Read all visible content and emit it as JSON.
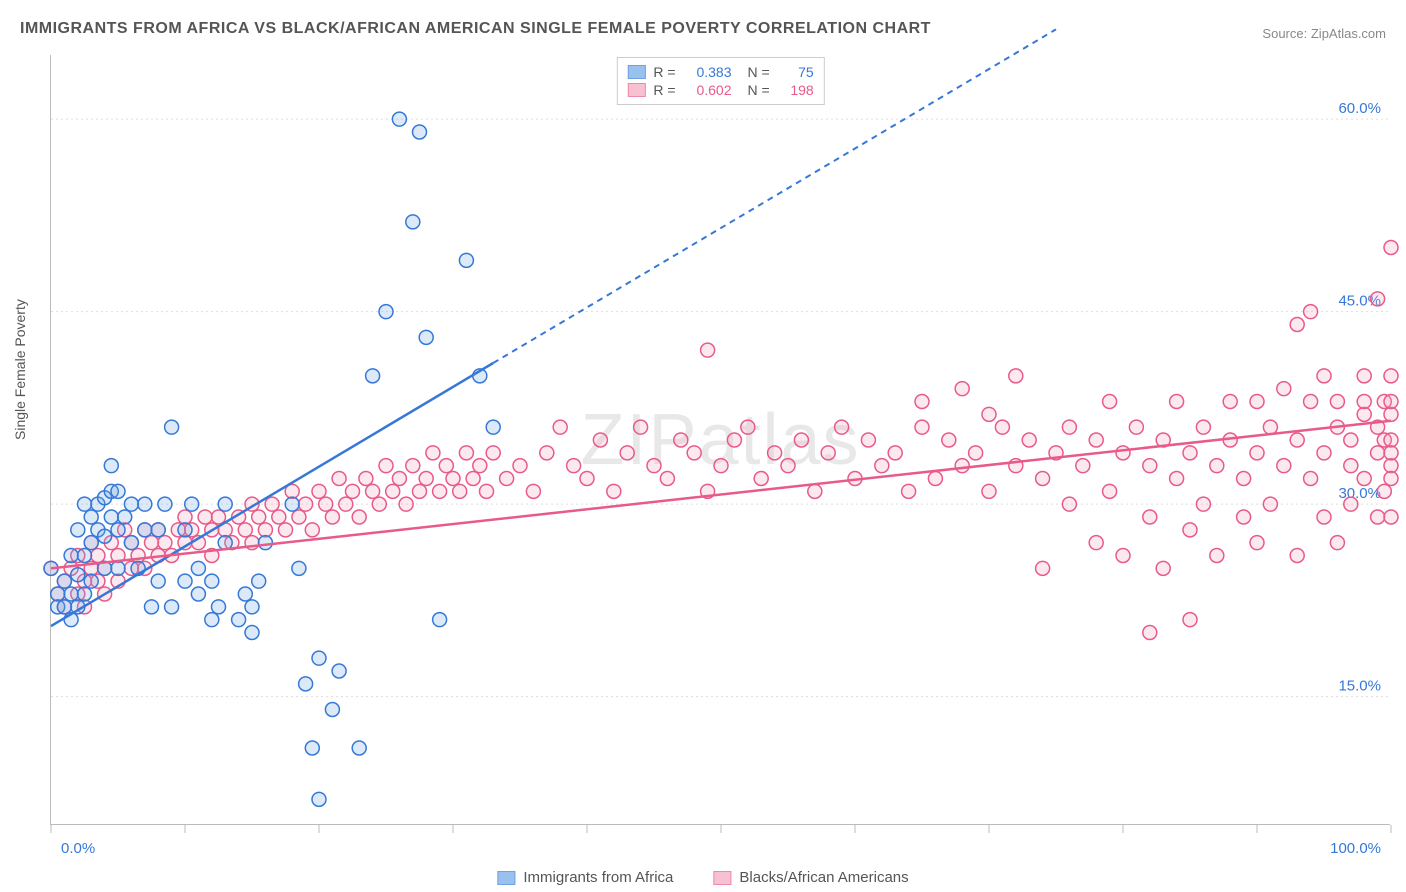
{
  "chart": {
    "title": "IMMIGRANTS FROM AFRICA VS BLACK/AFRICAN AMERICAN SINGLE FEMALE POVERTY CORRELATION CHART",
    "source_label": "Source:",
    "source_name": "ZipAtlas.com",
    "type": "scatter",
    "watermark": "ZIPatlas",
    "y_axis_label": "Single Female Poverty",
    "x_range": [
      0,
      100
    ],
    "y_range": [
      5,
      65
    ],
    "x_ticks": [
      {
        "value": 0.0,
        "label": "0.0%"
      },
      {
        "value": 100.0,
        "label": "100.0%"
      }
    ],
    "x_minor_ticks": [
      10,
      20,
      30,
      40,
      50,
      60,
      70,
      80,
      90
    ],
    "y_ticks": [
      {
        "value": 15.0,
        "label": "15.0%"
      },
      {
        "value": 30.0,
        "label": "30.0%"
      },
      {
        "value": 45.0,
        "label": "45.0%"
      },
      {
        "value": 60.0,
        "label": "60.0%"
      }
    ],
    "background_color": "#ffffff",
    "grid_color": "#dddddd",
    "axis_color": "#bbbbbb",
    "tick_label_color_x": "#3678d8",
    "tick_label_color_y": "#3678d8",
    "tick_label_color_y_first": "#e85a8a",
    "marker_radius": 7,
    "marker_stroke_width": 1.5,
    "marker_fill_opacity": 0.25,
    "series": [
      {
        "name": "Immigrants from Africa",
        "legend_label": "Immigrants from Africa",
        "color": "#6ea8e8",
        "stroke": "#3678d8",
        "R": "0.383",
        "N": "75",
        "trend": {
          "x1": 0,
          "y1": 20.5,
          "x2": 33,
          "y2": 41,
          "dash_x2": 75,
          "dash_y2": 67
        },
        "points": [
          [
            0,
            25
          ],
          [
            0.5,
            23
          ],
          [
            0.5,
            22
          ],
          [
            1,
            24
          ],
          [
            1,
            22
          ],
          [
            1.5,
            23
          ],
          [
            1.5,
            21
          ],
          [
            1.5,
            26
          ],
          [
            2,
            24.5
          ],
          [
            2,
            28
          ],
          [
            2,
            22
          ],
          [
            2.5,
            30
          ],
          [
            2.5,
            26
          ],
          [
            2.5,
            23
          ],
          [
            3,
            27
          ],
          [
            3,
            29
          ],
          [
            3,
            24
          ],
          [
            3.5,
            30
          ],
          [
            3.5,
            28
          ],
          [
            4,
            27.5
          ],
          [
            4,
            30.5
          ],
          [
            4,
            25
          ],
          [
            4.5,
            31
          ],
          [
            4.5,
            29
          ],
          [
            4.5,
            33
          ],
          [
            5,
            28
          ],
          [
            5,
            31
          ],
          [
            5,
            25
          ],
          [
            5.5,
            29
          ],
          [
            6,
            30
          ],
          [
            6,
            27
          ],
          [
            6.5,
            25
          ],
          [
            7,
            30
          ],
          [
            7,
            28
          ],
          [
            7.5,
            22
          ],
          [
            8,
            24
          ],
          [
            8,
            28
          ],
          [
            8.5,
            30
          ],
          [
            9,
            22
          ],
          [
            9,
            36
          ],
          [
            10,
            24
          ],
          [
            10,
            28
          ],
          [
            10.5,
            30
          ],
          [
            11,
            23
          ],
          [
            11,
            25
          ],
          [
            12,
            21
          ],
          [
            12,
            24
          ],
          [
            12.5,
            22
          ],
          [
            13,
            27
          ],
          [
            13,
            30
          ],
          [
            14,
            21
          ],
          [
            14.5,
            23
          ],
          [
            15,
            20
          ],
          [
            15,
            22
          ],
          [
            15.5,
            24
          ],
          [
            16,
            27
          ],
          [
            18,
            30
          ],
          [
            18.5,
            25
          ],
          [
            19,
            16
          ],
          [
            19.5,
            11
          ],
          [
            20,
            7
          ],
          [
            20,
            18
          ],
          [
            21,
            14
          ],
          [
            21.5,
            17
          ],
          [
            23,
            11
          ],
          [
            24,
            40
          ],
          [
            25,
            45
          ],
          [
            26,
            60
          ],
          [
            27,
            52
          ],
          [
            27.5,
            59
          ],
          [
            28,
            43
          ],
          [
            29,
            21
          ],
          [
            31,
            49
          ],
          [
            32,
            40
          ],
          [
            33,
            36
          ]
        ]
      },
      {
        "name": "Blacks/African Americans",
        "legend_label": "Blacks/African Americans",
        "color": "#f4a8c0",
        "stroke": "#e85a8a",
        "R": "0.602",
        "N": "198",
        "trend": {
          "x1": 0,
          "y1": 25,
          "x2": 100,
          "y2": 36.5
        },
        "points": [
          [
            0,
            25
          ],
          [
            0.5,
            23
          ],
          [
            1,
            22
          ],
          [
            1,
            24
          ],
          [
            1.5,
            25
          ],
          [
            2,
            23
          ],
          [
            2,
            26
          ],
          [
            2.5,
            24
          ],
          [
            2.5,
            22
          ],
          [
            3,
            25
          ],
          [
            3,
            27
          ],
          [
            3.5,
            26
          ],
          [
            3.5,
            24
          ],
          [
            4,
            25
          ],
          [
            4,
            23
          ],
          [
            4.5,
            27
          ],
          [
            5,
            26
          ],
          [
            5,
            24
          ],
          [
            5.5,
            28
          ],
          [
            6,
            25
          ],
          [
            6,
            27
          ],
          [
            6.5,
            26
          ],
          [
            7,
            28
          ],
          [
            7,
            25
          ],
          [
            7.5,
            27
          ],
          [
            8,
            26
          ],
          [
            8,
            28
          ],
          [
            8.5,
            27
          ],
          [
            9,
            26
          ],
          [
            9.5,
            28
          ],
          [
            10,
            27
          ],
          [
            10,
            29
          ],
          [
            10.5,
            28
          ],
          [
            11,
            27
          ],
          [
            11.5,
            29
          ],
          [
            12,
            28
          ],
          [
            12,
            26
          ],
          [
            12.5,
            29
          ],
          [
            13,
            28
          ],
          [
            13.5,
            27
          ],
          [
            14,
            29
          ],
          [
            14.5,
            28
          ],
          [
            15,
            30
          ],
          [
            15,
            27
          ],
          [
            15.5,
            29
          ],
          [
            16,
            28
          ],
          [
            16.5,
            30
          ],
          [
            17,
            29
          ],
          [
            17.5,
            28
          ],
          [
            18,
            31
          ],
          [
            18.5,
            29
          ],
          [
            19,
            30
          ],
          [
            19.5,
            28
          ],
          [
            20,
            31
          ],
          [
            20.5,
            30
          ],
          [
            21,
            29
          ],
          [
            21.5,
            32
          ],
          [
            22,
            30
          ],
          [
            22.5,
            31
          ],
          [
            23,
            29
          ],
          [
            23.5,
            32
          ],
          [
            24,
            31
          ],
          [
            24.5,
            30
          ],
          [
            25,
            33
          ],
          [
            25.5,
            31
          ],
          [
            26,
            32
          ],
          [
            26.5,
            30
          ],
          [
            27,
            33
          ],
          [
            27.5,
            31
          ],
          [
            28,
            32
          ],
          [
            28.5,
            34
          ],
          [
            29,
            31
          ],
          [
            29.5,
            33
          ],
          [
            30,
            32
          ],
          [
            30.5,
            31
          ],
          [
            31,
            34
          ],
          [
            31.5,
            32
          ],
          [
            32,
            33
          ],
          [
            32.5,
            31
          ],
          [
            33,
            34
          ],
          [
            34,
            32
          ],
          [
            35,
            33
          ],
          [
            36,
            31
          ],
          [
            37,
            34
          ],
          [
            38,
            36
          ],
          [
            39,
            33
          ],
          [
            40,
            32
          ],
          [
            41,
            35
          ],
          [
            42,
            31
          ],
          [
            43,
            34
          ],
          [
            44,
            36
          ],
          [
            45,
            33
          ],
          [
            46,
            32
          ],
          [
            47,
            35
          ],
          [
            48,
            34
          ],
          [
            49,
            31
          ],
          [
            49,
            42
          ],
          [
            50,
            33
          ],
          [
            51,
            35
          ],
          [
            52,
            36
          ],
          [
            53,
            32
          ],
          [
            54,
            34
          ],
          [
            55,
            33
          ],
          [
            56,
            35
          ],
          [
            57,
            31
          ],
          [
            58,
            34
          ],
          [
            59,
            36
          ],
          [
            60,
            32
          ],
          [
            61,
            35
          ],
          [
            62,
            33
          ],
          [
            63,
            34
          ],
          [
            64,
            31
          ],
          [
            65,
            36
          ],
          [
            65,
            38
          ],
          [
            66,
            32
          ],
          [
            67,
            35
          ],
          [
            68,
            33
          ],
          [
            68,
            39
          ],
          [
            69,
            34
          ],
          [
            70,
            31
          ],
          [
            70,
            37
          ],
          [
            71,
            36
          ],
          [
            72,
            33
          ],
          [
            72,
            40
          ],
          [
            73,
            35
          ],
          [
            74,
            32
          ],
          [
            74,
            25
          ],
          [
            75,
            34
          ],
          [
            76,
            36
          ],
          [
            76,
            30
          ],
          [
            77,
            33
          ],
          [
            78,
            35
          ],
          [
            78,
            27
          ],
          [
            79,
            31
          ],
          [
            79,
            38
          ],
          [
            80,
            34
          ],
          [
            80,
            26
          ],
          [
            81,
            36
          ],
          [
            82,
            33
          ],
          [
            82,
            29
          ],
          [
            82,
            20
          ],
          [
            83,
            35
          ],
          [
            83,
            25
          ],
          [
            84,
            32
          ],
          [
            84,
            38
          ],
          [
            85,
            34
          ],
          [
            85,
            28
          ],
          [
            85,
            21
          ],
          [
            86,
            36
          ],
          [
            86,
            30
          ],
          [
            87,
            33
          ],
          [
            87,
            26
          ],
          [
            88,
            35
          ],
          [
            88,
            38
          ],
          [
            89,
            32
          ],
          [
            89,
            29
          ],
          [
            90,
            34
          ],
          [
            90,
            27
          ],
          [
            90,
            38
          ],
          [
            91,
            36
          ],
          [
            91,
            30
          ],
          [
            92,
            33
          ],
          [
            92,
            39
          ],
          [
            93,
            35
          ],
          [
            93,
            26
          ],
          [
            93,
            44
          ],
          [
            94,
            32
          ],
          [
            94,
            38
          ],
          [
            94,
            45
          ],
          [
            95,
            34
          ],
          [
            95,
            29
          ],
          [
            95,
            40
          ],
          [
            96,
            36
          ],
          [
            96,
            27
          ],
          [
            96,
            38
          ],
          [
            97,
            33
          ],
          [
            97,
            35
          ],
          [
            97,
            30
          ],
          [
            98,
            37
          ],
          [
            98,
            32
          ],
          [
            98,
            40
          ],
          [
            98,
            38
          ],
          [
            99,
            34
          ],
          [
            99,
            29
          ],
          [
            99,
            36
          ],
          [
            99,
            46
          ],
          [
            99.5,
            35
          ],
          [
            99.5,
            38
          ],
          [
            99.5,
            31
          ],
          [
            100,
            50
          ],
          [
            100,
            33
          ],
          [
            100,
            37
          ],
          [
            100,
            29
          ],
          [
            100,
            35
          ],
          [
            100,
            40
          ],
          [
            100,
            32
          ],
          [
            100,
            38
          ],
          [
            100,
            34
          ]
        ]
      }
    ]
  }
}
